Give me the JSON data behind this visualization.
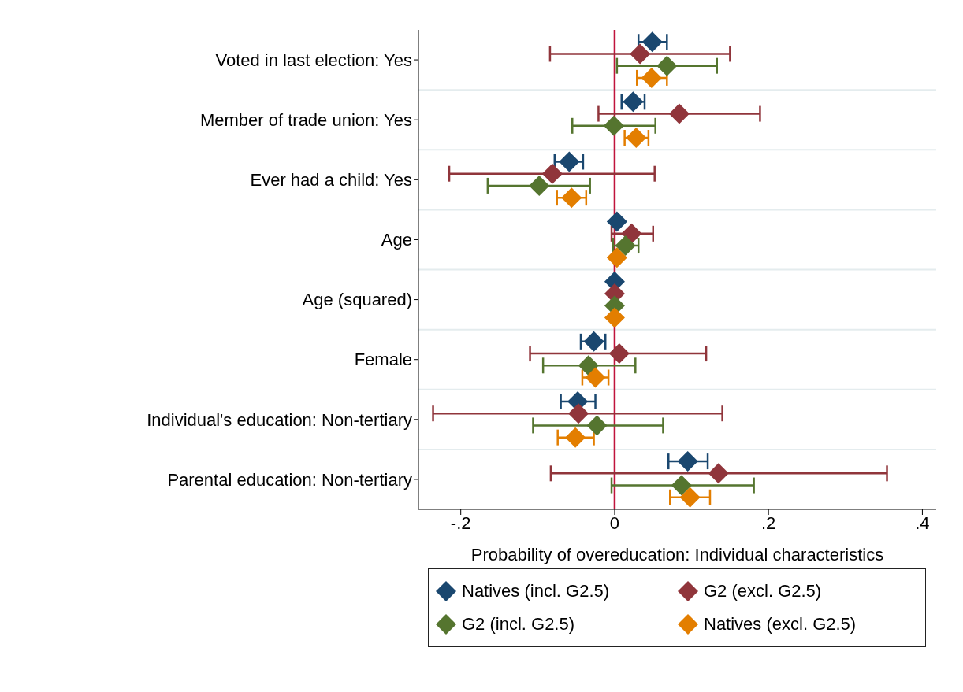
{
  "chart_data": {
    "type": "scatter",
    "orientation": "horizontal",
    "xlabel": "Probability of overeducation: Individual characteristics",
    "categories": [
      "Voted in last election: Yes",
      "Member of trade union: Yes",
      "Ever had a child: Yes",
      "Age",
      "Age (squared)",
      "Female",
      "Individual's education: Non-tertiary",
      "Parental education: Non-tertiary"
    ],
    "series": [
      {
        "name": "Natives (incl. G2.5)",
        "color": "#1a476f",
        "values": [
          0.049,
          0.024,
          -0.059,
          0.003,
          0.0,
          -0.027,
          -0.048,
          0.095
        ],
        "errors": [
          [
            0.031,
            0.068
          ],
          [
            0.009,
            0.039
          ],
          [
            -0.078,
            -0.041
          ],
          null,
          null,
          [
            -0.044,
            -0.012
          ],
          [
            -0.07,
            -0.025
          ],
          [
            0.07,
            0.121
          ]
        ]
      },
      {
        "name": "G2 (excl. G2.5)",
        "color": "#90353b",
        "values": [
          0.033,
          0.084,
          -0.081,
          0.022,
          0.0,
          0.006,
          -0.047,
          0.135
        ],
        "errors": [
          [
            -0.084,
            0.15
          ],
          [
            -0.021,
            0.189
          ],
          [
            -0.215,
            0.052
          ],
          [
            -0.004,
            0.05
          ],
          null,
          [
            -0.11,
            0.119
          ],
          [
            -0.236,
            0.14
          ],
          [
            -0.083,
            0.354
          ]
        ]
      },
      {
        "name": "G2 (incl. G2.5)",
        "color": "#55752f",
        "values": [
          0.068,
          -0.001,
          -0.098,
          0.014,
          0.0,
          -0.034,
          -0.023,
          0.087
        ],
        "errors": [
          [
            0.003,
            0.133
          ],
          [
            -0.055,
            0.053
          ],
          [
            -0.165,
            -0.032
          ],
          [
            -0.002,
            0.031
          ],
          null,
          [
            -0.093,
            0.027
          ],
          [
            -0.106,
            0.063
          ],
          [
            -0.004,
            0.181
          ]
        ]
      },
      {
        "name": "Natives (excl. G2.5)",
        "color": "#e37e00",
        "values": [
          0.048,
          0.028,
          -0.056,
          0.003,
          0.0,
          -0.025,
          -0.051,
          0.098
        ],
        "errors": [
          [
            0.029,
            0.068
          ],
          [
            0.013,
            0.044
          ],
          [
            -0.075,
            -0.037
          ],
          null,
          null,
          [
            -0.042,
            -0.008
          ],
          [
            -0.074,
            -0.027
          ],
          [
            0.072,
            0.124
          ]
        ]
      }
    ],
    "xlim": [
      -0.255,
      0.418
    ],
    "xticks": [
      {
        "value": -0.2,
        "label": "-.2"
      },
      {
        "value": 0,
        "label": "0"
      },
      {
        "value": 0.2,
        "label": ".2"
      },
      {
        "value": 0.4,
        "label": ".4"
      }
    ],
    "ref_lines": [
      {
        "axis": "x",
        "value": 0,
        "color": "#c0143c"
      }
    ],
    "grid": "y",
    "legend": "bottom",
    "marker": "diamond"
  }
}
